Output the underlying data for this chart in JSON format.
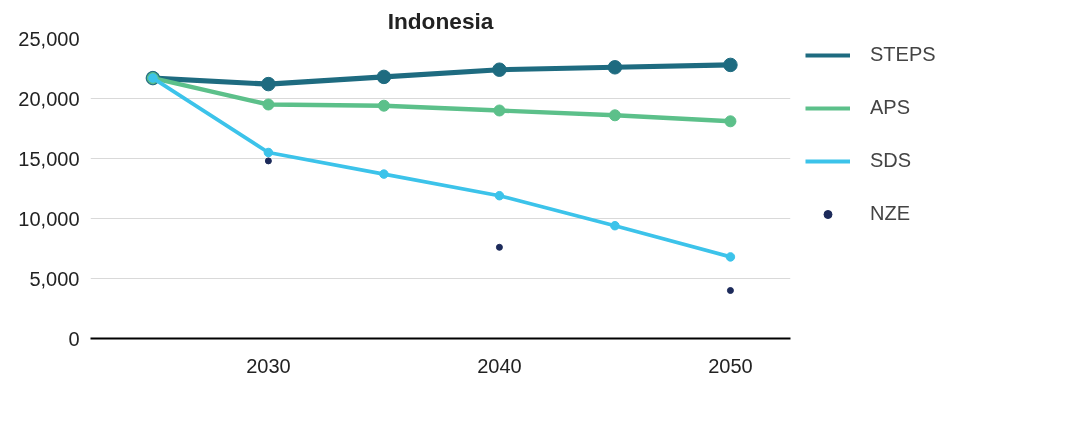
{
  "chart_data": {
    "type": "line",
    "title": "Indonesia",
    "x": [
      2025,
      2030,
      2035,
      2040,
      2045,
      2050
    ],
    "series": [
      {
        "name": "STEPS",
        "color": "#1e6b80",
        "values": [
          21700,
          21200,
          21800,
          22400,
          22600,
          22800
        ]
      },
      {
        "name": "APS",
        "color": "#5cc08a",
        "values": [
          21700,
          19500,
          19400,
          19000,
          18600,
          18100
        ]
      },
      {
        "name": "SDS",
        "color": "#3cc3ea",
        "values": [
          21700,
          15500,
          13700,
          11900,
          9400,
          6800
        ]
      },
      {
        "name": "NZE",
        "color": "#1c2a5a",
        "type": "scatter",
        "x": [
          2030,
          2040,
          2050
        ],
        "values": [
          14800,
          7600,
          4000
        ]
      }
    ],
    "xlim": [
      2022.3,
      2052.6
    ],
    "xticks": [
      2030,
      2040,
      2050
    ],
    "ylim": [
      0,
      25000
    ],
    "yticks": [
      {
        "value": 0,
        "label": "0"
      },
      {
        "value": 5000,
        "label": "5,000"
      },
      {
        "value": 10000,
        "label": "10,000"
      },
      {
        "value": 15000,
        "label": "15,000"
      },
      {
        "value": 20000,
        "label": "20,000"
      },
      {
        "value": 25000,
        "label": "25,000"
      }
    ],
    "grid": "y",
    "legend": "right",
    "marker": "circle"
  }
}
